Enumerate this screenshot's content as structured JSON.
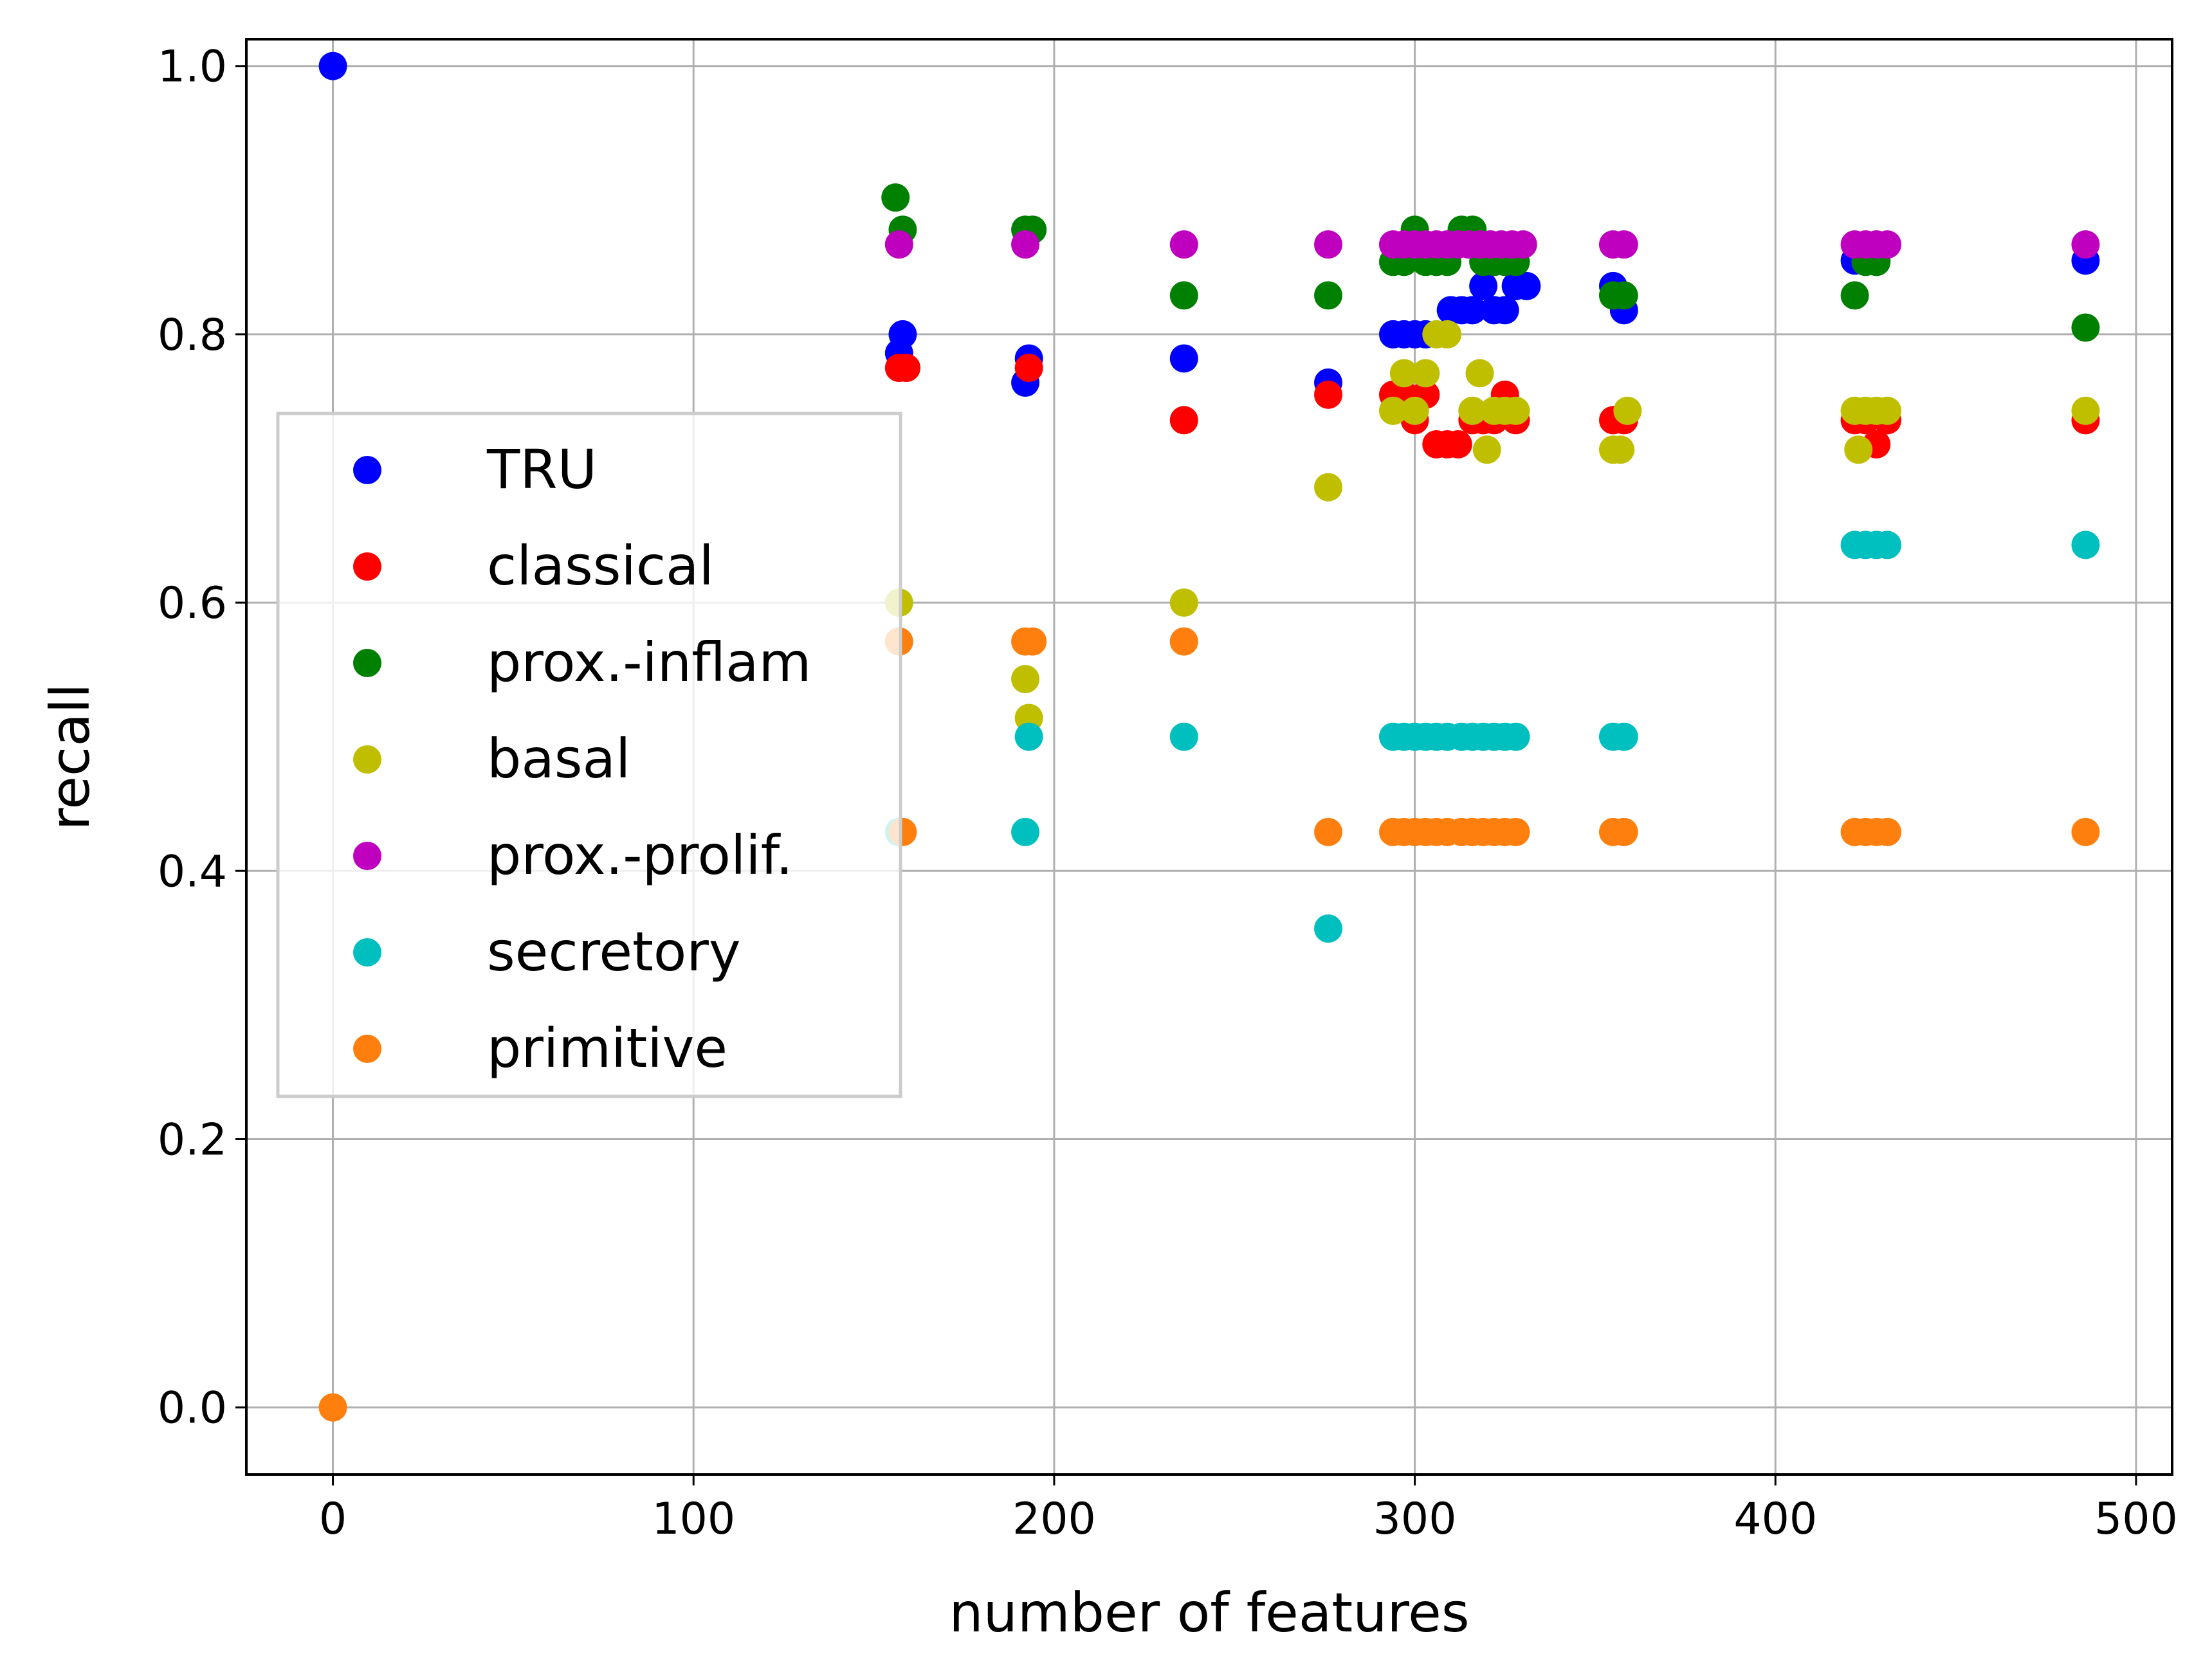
{
  "chart_data": {
    "type": "scatter",
    "title": "",
    "xlabel": "number of features",
    "ylabel": "recall",
    "xlim": [
      -24,
      510
    ],
    "ylim": [
      -0.05,
      1.02
    ],
    "xticks": [
      0,
      100,
      200,
      300,
      400,
      500
    ],
    "yticks": [
      0.0,
      0.2,
      0.4,
      0.6,
      0.8,
      1.0
    ],
    "xtick_labels": [
      "0",
      "100",
      "200",
      "300",
      "400",
      "500"
    ],
    "ytick_labels": [
      "0.0",
      "0.2",
      "0.4",
      "0.6",
      "0.8",
      "1.0"
    ],
    "grid": true,
    "legend_position": "center-left",
    "series": [
      {
        "name": "TRU",
        "color": "#0000ff",
        "points": [
          [
            0,
            1.0
          ],
          [
            157,
            0.786
          ],
          [
            158,
            0.8
          ],
          [
            192,
            0.764
          ],
          [
            193,
            0.782
          ],
          [
            236,
            0.782
          ],
          [
            276,
            0.764
          ],
          [
            294,
            0.8
          ],
          [
            297,
            0.8
          ],
          [
            300,
            0.8
          ],
          [
            303,
            0.8
          ],
          [
            310,
            0.818
          ],
          [
            313,
            0.818
          ],
          [
            316,
            0.818
          ],
          [
            319,
            0.836
          ],
          [
            322,
            0.818
          ],
          [
            325,
            0.818
          ],
          [
            328,
            0.836
          ],
          [
            331,
            0.836
          ],
          [
            355,
            0.836
          ],
          [
            358,
            0.818
          ],
          [
            422,
            0.855
          ],
          [
            425,
            0.855
          ],
          [
            428,
            0.855
          ],
          [
            486,
            0.855
          ]
        ]
      },
      {
        "name": "classical",
        "color": "#ff0000",
        "points": [
          [
            157,
            0.775
          ],
          [
            159,
            0.775
          ],
          [
            193,
            0.775
          ],
          [
            236,
            0.736
          ],
          [
            276,
            0.755
          ],
          [
            294,
            0.755
          ],
          [
            297,
            0.755
          ],
          [
            300,
            0.736
          ],
          [
            303,
            0.755
          ],
          [
            306,
            0.718
          ],
          [
            309,
            0.718
          ],
          [
            312,
            0.718
          ],
          [
            316,
            0.736
          ],
          [
            319,
            0.736
          ],
          [
            322,
            0.736
          ],
          [
            325,
            0.755
          ],
          [
            328,
            0.736
          ],
          [
            355,
            0.736
          ],
          [
            358,
            0.736
          ],
          [
            422,
            0.736
          ],
          [
            425,
            0.736
          ],
          [
            428,
            0.718
          ],
          [
            431,
            0.736
          ],
          [
            486,
            0.736
          ]
        ]
      },
      {
        "name": "prox.-inflam",
        "color": "#008000",
        "points": [
          [
            156,
            0.902
          ],
          [
            158,
            0.878
          ],
          [
            192,
            0.878
          ],
          [
            194,
            0.878
          ],
          [
            236,
            0.829
          ],
          [
            276,
            0.829
          ],
          [
            294,
            0.854
          ],
          [
            297,
            0.854
          ],
          [
            300,
            0.878
          ],
          [
            303,
            0.854
          ],
          [
            306,
            0.854
          ],
          [
            309,
            0.854
          ],
          [
            313,
            0.878
          ],
          [
            316,
            0.878
          ],
          [
            319,
            0.854
          ],
          [
            322,
            0.854
          ],
          [
            325,
            0.854
          ],
          [
            328,
            0.854
          ],
          [
            355,
            0.829
          ],
          [
            358,
            0.829
          ],
          [
            422,
            0.829
          ],
          [
            425,
            0.854
          ],
          [
            428,
            0.854
          ],
          [
            486,
            0.805
          ]
        ]
      },
      {
        "name": "basal",
        "color": "#bfbf00",
        "points": [
          [
            157,
            0.6
          ],
          [
            192,
            0.543
          ],
          [
            193,
            0.514
          ],
          [
            236,
            0.6
          ],
          [
            276,
            0.686
          ],
          [
            294,
            0.743
          ],
          [
            297,
            0.771
          ],
          [
            300,
            0.743
          ],
          [
            303,
            0.771
          ],
          [
            306,
            0.8
          ],
          [
            309,
            0.8
          ],
          [
            316,
            0.743
          ],
          [
            318,
            0.771
          ],
          [
            320,
            0.714
          ],
          [
            322,
            0.743
          ],
          [
            325,
            0.743
          ],
          [
            328,
            0.743
          ],
          [
            355,
            0.714
          ],
          [
            357,
            0.714
          ],
          [
            359,
            0.743
          ],
          [
            422,
            0.743
          ],
          [
            423,
            0.714
          ],
          [
            425,
            0.743
          ],
          [
            428,
            0.743
          ],
          [
            431,
            0.743
          ],
          [
            486,
            0.743
          ]
        ]
      },
      {
        "name": "prox.-prolif.",
        "color": "#bf00bf",
        "points": [
          [
            157,
            0.867
          ],
          [
            192,
            0.867
          ],
          [
            236,
            0.867
          ],
          [
            276,
            0.867
          ],
          [
            294,
            0.867
          ],
          [
            297,
            0.867
          ],
          [
            300,
            0.867
          ],
          [
            303,
            0.867
          ],
          [
            306,
            0.867
          ],
          [
            309,
            0.867
          ],
          [
            312,
            0.867
          ],
          [
            315,
            0.867
          ],
          [
            318,
            0.867
          ],
          [
            321,
            0.867
          ],
          [
            324,
            0.867
          ],
          [
            327,
            0.867
          ],
          [
            330,
            0.867
          ],
          [
            355,
            0.867
          ],
          [
            358,
            0.867
          ],
          [
            422,
            0.867
          ],
          [
            425,
            0.867
          ],
          [
            428,
            0.867
          ],
          [
            431,
            0.867
          ],
          [
            486,
            0.867
          ]
        ]
      },
      {
        "name": "secretory",
        "color": "#00bfbf",
        "points": [
          [
            157,
            0.429
          ],
          [
            192,
            0.429
          ],
          [
            193,
            0.5
          ],
          [
            236,
            0.5
          ],
          [
            276,
            0.357
          ],
          [
            294,
            0.5
          ],
          [
            297,
            0.5
          ],
          [
            300,
            0.5
          ],
          [
            303,
            0.5
          ],
          [
            306,
            0.5
          ],
          [
            309,
            0.5
          ],
          [
            313,
            0.5
          ],
          [
            316,
            0.5
          ],
          [
            319,
            0.5
          ],
          [
            322,
            0.5
          ],
          [
            325,
            0.5
          ],
          [
            328,
            0.5
          ],
          [
            355,
            0.5
          ],
          [
            358,
            0.5
          ],
          [
            422,
            0.643
          ],
          [
            425,
            0.643
          ],
          [
            428,
            0.643
          ],
          [
            431,
            0.643
          ],
          [
            486,
            0.643
          ]
        ]
      },
      {
        "name": "primitive",
        "color": "#ff7f0e",
        "points": [
          [
            0,
            0.0
          ],
          [
            157,
            0.571
          ],
          [
            158,
            0.429
          ],
          [
            192,
            0.571
          ],
          [
            194,
            0.571
          ],
          [
            236,
            0.571
          ],
          [
            276,
            0.429
          ],
          [
            294,
            0.429
          ],
          [
            297,
            0.429
          ],
          [
            300,
            0.429
          ],
          [
            303,
            0.429
          ],
          [
            306,
            0.429
          ],
          [
            309,
            0.429
          ],
          [
            313,
            0.429
          ],
          [
            316,
            0.429
          ],
          [
            319,
            0.429
          ],
          [
            322,
            0.429
          ],
          [
            325,
            0.429
          ],
          [
            328,
            0.429
          ],
          [
            355,
            0.429
          ],
          [
            358,
            0.429
          ],
          [
            422,
            0.429
          ],
          [
            425,
            0.429
          ],
          [
            428,
            0.429
          ],
          [
            431,
            0.429
          ],
          [
            486,
            0.429
          ]
        ]
      }
    ]
  }
}
